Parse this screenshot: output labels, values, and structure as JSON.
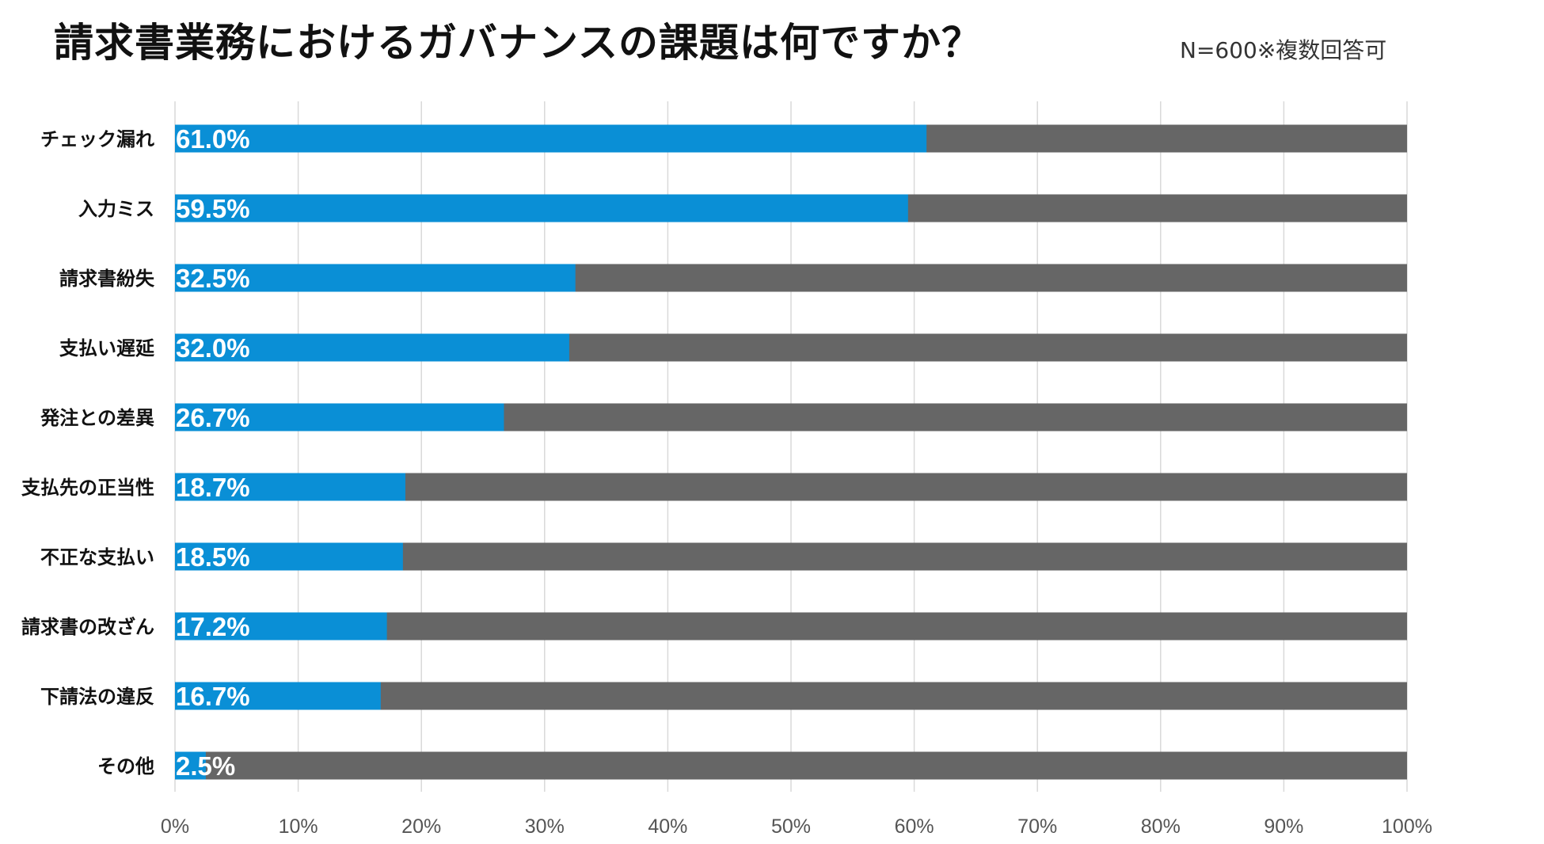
{
  "title": "請求書業務におけるガバナンスの課題は何ですか？",
  "note": "N=600※複数回答可",
  "colors": {
    "bar": "#0a8fd6",
    "remainder": "#666666",
    "grid": "#d9d9d9",
    "label": "#111111",
    "value_text": "#ffffff"
  },
  "chart_data": {
    "type": "bar",
    "orientation": "horizontal",
    "stacked_to_100": true,
    "categories": [
      "チェック漏れ",
      "入力ミス",
      "請求書紛失",
      "支払い遅延",
      "発注との差異",
      "支払先の正当性",
      "不正な支払い",
      "請求書の改ざん",
      "下請法の違反",
      "その他"
    ],
    "values": [
      61.0,
      59.5,
      32.5,
      32.0,
      26.7,
      18.7,
      18.5,
      17.2,
      16.7,
      2.5
    ],
    "value_labels": [
      "61.0%",
      "59.5%",
      "32.5%",
      "32.0%",
      "26.7%",
      "18.7%",
      "18.5%",
      "17.2%",
      "16.7%",
      "2.5%"
    ],
    "xlim": [
      0,
      100
    ],
    "xticks": [
      "0%",
      "10%",
      "20%",
      "30%",
      "40%",
      "50%",
      "60%",
      "70%",
      "80%",
      "90%",
      "100%"
    ],
    "grid": true,
    "legend": "none"
  }
}
